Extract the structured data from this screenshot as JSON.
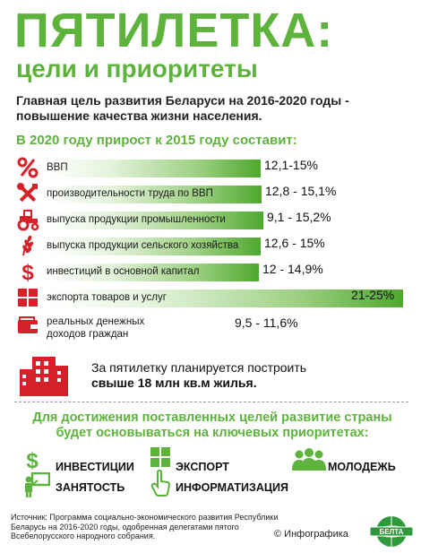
{
  "header": {
    "title": "ПЯТИЛЕТКА:",
    "subtitle": "цели и приоритеты"
  },
  "lead_text": "Главная цель развития Беларуси на 2016-2020 годы - повышение качества жизни населения.",
  "growth": {
    "heading": "В 2020 году прирост к 2015 году составит:",
    "items": [
      {
        "label": "ВВП",
        "value": "12,1-15%",
        "icon": "percent-icon",
        "high_pct": 15
      },
      {
        "label": "производительности труда по ВВП",
        "value": "12,8 - 15,1%",
        "icon": "tools-icon",
        "high_pct": 15.1
      },
      {
        "label": "выпуска продукции промышленности",
        "value": "9,1 - 15,2%",
        "icon": "tractor-icon",
        "high_pct": 15.2
      },
      {
        "label": "выпуска продукции сельского хозяйства",
        "value": "12,6 - 15%",
        "icon": "wheat-icon",
        "high_pct": 15
      },
      {
        "label": "инвестиций в основной капитал",
        "value": "12 - 14,9%",
        "icon": "dollar-icon",
        "high_pct": 14.9
      },
      {
        "label": "экспорта товаров и услуг",
        "value": "21-25%",
        "icon": "boxes-icon",
        "high_pct": 25
      },
      {
        "label": "реальных денежных доходов граждан",
        "value": "9,5 - 11,6%",
        "icon": "wallet-icon",
        "high_pct": 11.6
      }
    ]
  },
  "housing": {
    "line1": "За пятилетку планируется построить",
    "line2": "свыше 18 млн кв.м жилья."
  },
  "priorities": {
    "heading": "Для достижения поставленных целей развитие страны будет основываться на ключевых приоритетах:",
    "items": [
      "ИНВЕСТИЦИИ",
      "ЭКСПОРТ",
      "МОЛОДЕЖЬ",
      "ЗАНЯТОСТЬ",
      "ИНФОРМАТИЗАЦИЯ"
    ]
  },
  "footer": {
    "source": "Источник: Программа социально-экономического развития Республики Беларусь на 2016-2020 годы, одобренная делегатами пятого Всебелорусского народного собрания.",
    "credit": "© Инфографика",
    "logo_text": "БЕЛТА"
  },
  "colors": {
    "accent_green": "#5db33b",
    "icon_red": "#d6202a",
    "text_dark": "#1a1a1a"
  }
}
